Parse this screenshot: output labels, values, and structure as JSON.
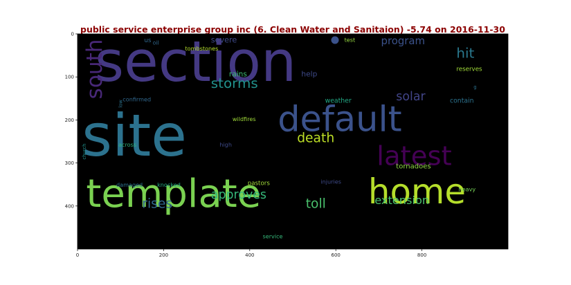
{
  "chart_data": {
    "type": "wordcloud",
    "title": "public service enterprise group inc (6. Clean Water and Sanitaion) -5.74 on 2016-11-30",
    "xlim": [
      0,
      1000
    ],
    "ylim": [
      500,
      0
    ],
    "x_ticks": [
      0,
      200,
      400,
      600,
      800
    ],
    "y_ticks": [
      0,
      100,
      200,
      300,
      400
    ],
    "background": "#000000",
    "words": [
      {
        "text": "section",
        "x": 40,
        "y": 5,
        "size": 130,
        "color": "#443983",
        "rotate": 0
      },
      {
        "text": "site",
        "x": 10,
        "y": 175,
        "size": 135,
        "color": "#2c728e",
        "rotate": 0
      },
      {
        "text": "template",
        "x": 20,
        "y": 330,
        "size": 90,
        "color": "#7ad151",
        "rotate": 0
      },
      {
        "text": "home",
        "x": 675,
        "y": 330,
        "size": 80,
        "color": "#b5de2b",
        "rotate": 0
      },
      {
        "text": "default",
        "x": 465,
        "y": 160,
        "size": 82,
        "color": "#3b528b",
        "rotate": 0
      },
      {
        "text": "latest",
        "x": 695,
        "y": 255,
        "size": 62,
        "color": "#440154",
        "rotate": 0
      },
      {
        "text": "south",
        "x": 15,
        "y": 12,
        "size": 50,
        "color": "#482878",
        "rotate": -90
      },
      {
        "text": "storms",
        "x": 310,
        "y": 100,
        "size": 32,
        "color": "#21918c",
        "rotate": 0
      },
      {
        "text": "death",
        "x": 510,
        "y": 228,
        "size": 30,
        "color": "#bddf26",
        "rotate": 0
      },
      {
        "text": "toll",
        "x": 530,
        "y": 380,
        "size": 30,
        "color": "#4ac16d",
        "rotate": 0
      },
      {
        "text": "rises",
        "x": 150,
        "y": 380,
        "size": 30,
        "color": "#31688e",
        "rotate": 0
      },
      {
        "text": "approves",
        "x": 310,
        "y": 360,
        "size": 28,
        "color": "#35b779",
        "rotate": 0
      },
      {
        "text": "extension",
        "x": 690,
        "y": 375,
        "size": 26,
        "color": "#4ac16d",
        "rotate": 0
      },
      {
        "text": "hit",
        "x": 880,
        "y": 30,
        "size": 32,
        "color": "#2a788e",
        "rotate": 0
      },
      {
        "text": "solar",
        "x": 740,
        "y": 132,
        "size": 28,
        "color": "#414487",
        "rotate": 0
      },
      {
        "text": "program",
        "x": 705,
        "y": 5,
        "size": 24,
        "color": "#3b528b",
        "rotate": 0
      },
      {
        "text": "severe",
        "x": 310,
        "y": 6,
        "size": 18,
        "color": "#3e4a89",
        "rotate": 0
      },
      {
        "text": "tombstones",
        "x": 250,
        "y": 28,
        "size": 13,
        "color": "#b5de2b",
        "rotate": 0
      },
      {
        "text": "oil",
        "x": 175,
        "y": 15,
        "size": 12,
        "color": "#31688e",
        "rotate": 0
      },
      {
        "text": "us",
        "x": 155,
        "y": 8,
        "size": 14,
        "color": "#31688e",
        "rotate": 0
      },
      {
        "text": "test",
        "x": 620,
        "y": 8,
        "size": 13,
        "color": "#95d840",
        "rotate": 0
      },
      {
        "text": "rains",
        "x": 352,
        "y": 85,
        "size": 17,
        "color": "#3cbb75",
        "rotate": 0
      },
      {
        "text": "help",
        "x": 520,
        "y": 85,
        "size": 17,
        "color": "#3e4a89",
        "rotate": 0
      },
      {
        "text": "reserves",
        "x": 880,
        "y": 75,
        "size": 14,
        "color": "#a0da39",
        "rotate": 0
      },
      {
        "text": "weather",
        "x": 575,
        "y": 148,
        "size": 15,
        "color": "#22a884",
        "rotate": 0
      },
      {
        "text": "contain",
        "x": 865,
        "y": 148,
        "size": 15,
        "color": "#2c728e",
        "rotate": 0
      },
      {
        "text": "confirmed",
        "x": 105,
        "y": 146,
        "size": 13,
        "color": "#31688e",
        "rotate": 0
      },
      {
        "text": "low",
        "x": 95,
        "y": 153,
        "size": 11,
        "color": "#2c728e",
        "rotate": -90
      },
      {
        "text": "wildfires",
        "x": 360,
        "y": 192,
        "size": 13,
        "color": "#a0da39",
        "rotate": 0
      },
      {
        "text": "across",
        "x": 95,
        "y": 252,
        "size": 13,
        "color": "#2db27d",
        "rotate": 0
      },
      {
        "text": "high",
        "x": 330,
        "y": 252,
        "size": 13,
        "color": "#3e4a89",
        "rotate": 0
      },
      {
        "text": "church",
        "x": 10,
        "y": 255,
        "size": 11,
        "color": "#21918c",
        "rotate": -90
      },
      {
        "text": "damaged",
        "x": 90,
        "y": 345,
        "size": 13,
        "color": "#2c728e",
        "rotate": 0
      },
      {
        "text": "knocked",
        "x": 185,
        "y": 345,
        "size": 13,
        "color": "#25ab82",
        "rotate": 0
      },
      {
        "text": "pastors",
        "x": 395,
        "y": 340,
        "size": 14,
        "color": "#a0da39",
        "rotate": 0
      },
      {
        "text": "injuries",
        "x": 565,
        "y": 338,
        "size": 13,
        "color": "#3e4a89",
        "rotate": 0
      },
      {
        "text": "tornadoes",
        "x": 740,
        "y": 300,
        "size": 16,
        "color": "#8fd744",
        "rotate": 0
      },
      {
        "text": "heavy",
        "x": 885,
        "y": 355,
        "size": 13,
        "color": "#74d055",
        "rotate": 0
      },
      {
        "text": "service",
        "x": 430,
        "y": 465,
        "size": 13,
        "color": "#35b779",
        "rotate": 0
      },
      {
        "text": "g",
        "x": 920,
        "y": 118,
        "size": 11,
        "color": "#2c728e",
        "rotate": 0
      }
    ]
  }
}
